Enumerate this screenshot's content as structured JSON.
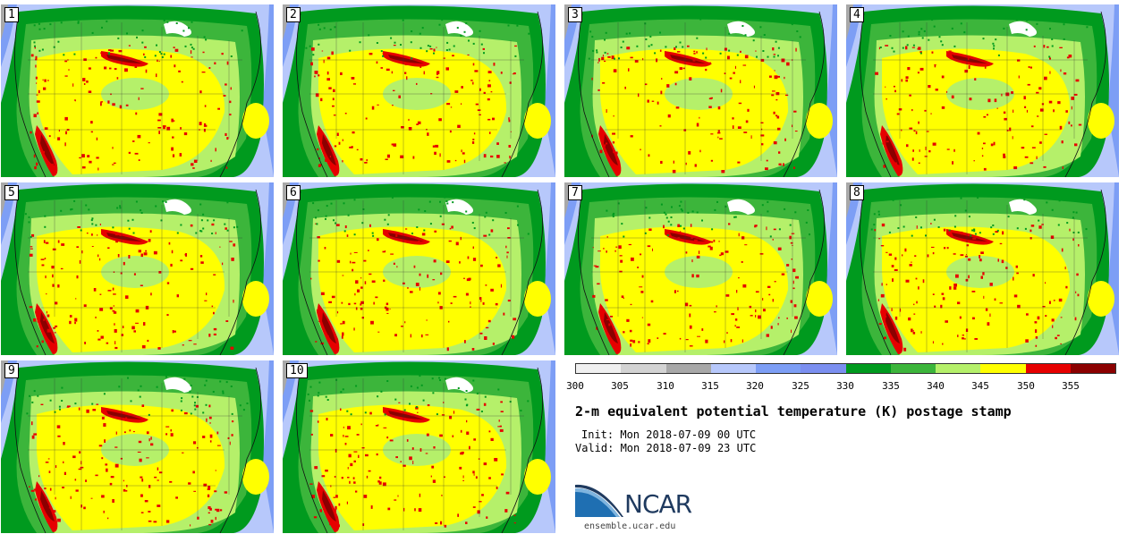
{
  "panels": [
    {
      "label": "1"
    },
    {
      "label": "2"
    },
    {
      "label": "3"
    },
    {
      "label": "4"
    },
    {
      "label": "5"
    },
    {
      "label": "6"
    },
    {
      "label": "7"
    },
    {
      "label": "8"
    },
    {
      "label": "9"
    },
    {
      "label": "10"
    }
  ],
  "colorbar": {
    "colors": [
      "#f0f0f0",
      "#d3d3d3",
      "#a8a8a8",
      "#b7c8fb",
      "#7d9ef5",
      "#7b8ff0",
      "#009a1e",
      "#3cb53b",
      "#b5f06a",
      "#ffff00",
      "#e60000",
      "#8b0000"
    ],
    "ticks": [
      "300",
      "305",
      "310",
      "315",
      "320",
      "325",
      "330",
      "335",
      "340",
      "345",
      "350",
      "355"
    ]
  },
  "title": "2-m equivalent potential temperature (K) postage stamp",
  "init": "Init: Mon 2018-07-09 00 UTC",
  "valid": "Valid: Mon 2018-07-09 23 UTC",
  "logo": {
    "text": "NCAR",
    "site": "ensemble.ucar.edu"
  }
}
